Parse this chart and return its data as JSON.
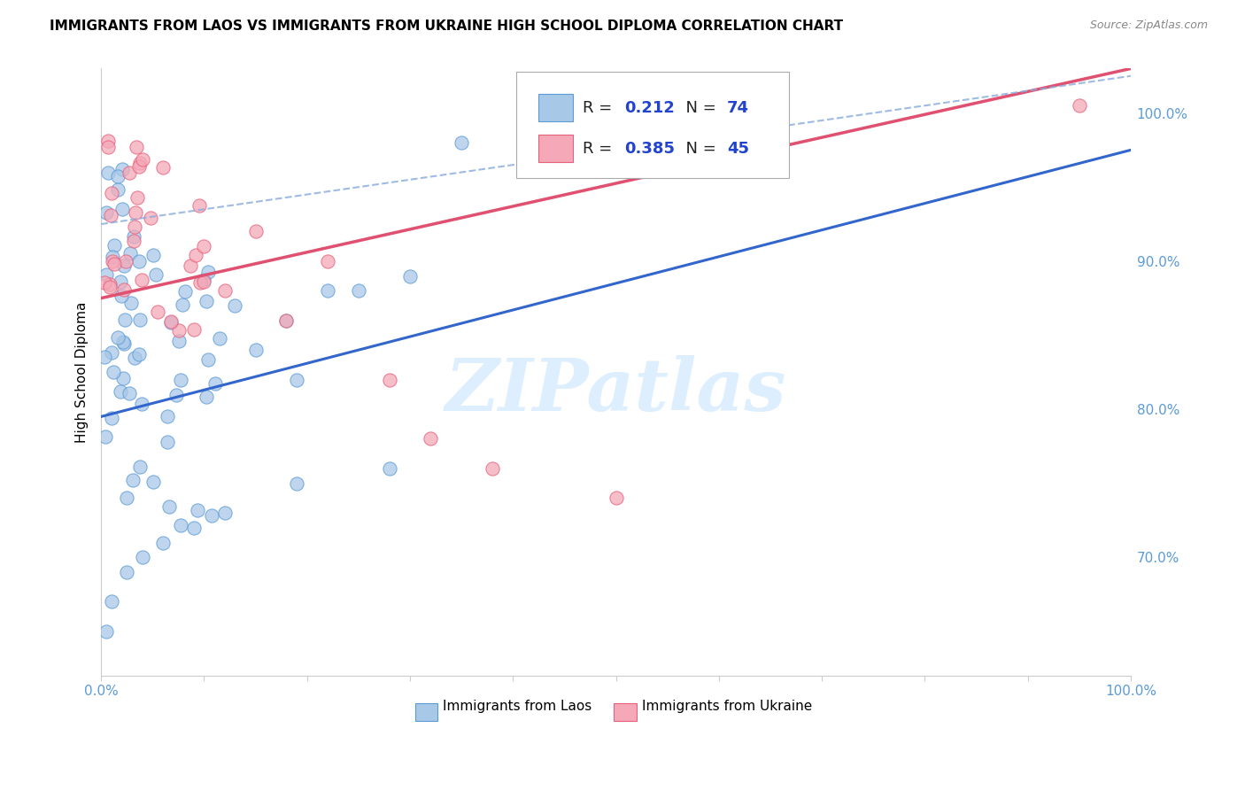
{
  "title": "IMMIGRANTS FROM LAOS VS IMMIGRANTS FROM UKRAINE HIGH SCHOOL DIPLOMA CORRELATION CHART",
  "source": "Source: ZipAtlas.com",
  "ylabel": "High School Diploma",
  "xlim": [
    0.0,
    1.0
  ],
  "ylim": [
    0.62,
    1.03
  ],
  "yticks": [
    0.7,
    0.8,
    0.9,
    1.0
  ],
  "ytick_labels": [
    "70.0%",
    "80.0%",
    "90.0%",
    "100.0%"
  ],
  "xtick_labels": [
    "0.0%",
    "",
    "",
    "",
    "",
    "",
    "",
    "",
    "",
    "",
    "100.0%"
  ],
  "laos_color": "#a8c8e8",
  "ukraine_color": "#f4a8b8",
  "laos_edge_color": "#5b9bd5",
  "ukraine_edge_color": "#e8607a",
  "laos_line_color": "#3366cc",
  "ukraine_line_color": "#e05070",
  "laos_dash_color": "#88aadd",
  "watermark_color": "#ddeeff",
  "background_color": "#ffffff",
  "grid_color": "#cccccc",
  "tick_color": "#5b9bd5",
  "title_color": "#000000",
  "legend_text_color": "#2244cc",
  "legend_r_laos": "0.212",
  "legend_n_laos": "74",
  "legend_r_ukraine": "0.385",
  "legend_n_ukraine": "45",
  "watermark": "ZIPatlas"
}
